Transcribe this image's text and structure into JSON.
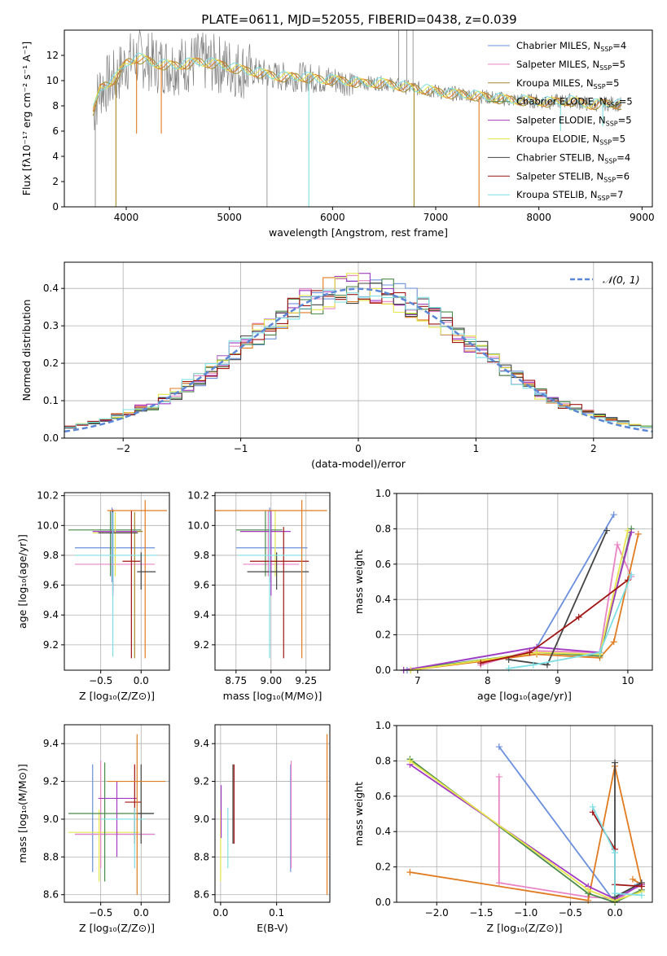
{
  "figure": {
    "title": "PLATE=0611, MJD=52055, FIBERID=0438, z=0.039"
  },
  "colors": {
    "Chabrier MILES": "#6a8fdc",
    "Salpeter MILES": "#e884c4",
    "Kroupa MILES": "#a38a2c",
    "Chabrier ELODIE": "#4a8a4a",
    "Salpeter ELODIE": "#a23bc2",
    "Kroupa ELODIE": "#e6e64c",
    "Chabrier STELIB": "#444444",
    "Salpeter STELIB": "#a01414",
    "Kroupa STELIB": "#7ddfe3",
    "orange": "#e07b20",
    "data": "#808080"
  },
  "chart_data": [
    {
      "id": "spectrum",
      "type": "line",
      "title": "PLATE=0611, MJD=52055, FIBERID=0438, z=0.039",
      "xlabel": "wavelength [Angstrom, rest frame]",
      "ylabel": "Flux [fλ10⁻¹⁷ erg cm⁻² s⁻¹ A⁻¹]",
      "xlim": [
        3400,
        9100
      ],
      "ylim": [
        0,
        14
      ],
      "xticks": [
        "4000",
        "5000",
        "6000",
        "7000",
        "8000",
        "9000"
      ],
      "yticks": [
        "0",
        "2",
        "4",
        "6",
        "8",
        "10",
        "12"
      ],
      "legend_position": "top-right",
      "legend": [
        {
          "label": "Chabrier MILES, N",
          "sub": "SSP",
          "post": "=4"
        },
        {
          "label": "Salpeter MILES, N",
          "sub": "SSP",
          "post": "=5"
        },
        {
          "label": "Kroupa MILES, N",
          "sub": "SSP",
          "post": "=5"
        },
        {
          "label": "Chabrier ELODIE, N",
          "sub": "SSP",
          "post": "=5"
        },
        {
          "label": "Salpeter ELODIE, N",
          "sub": "SSP",
          "post": "=5"
        },
        {
          "label": "Kroupa ELODIE, N",
          "sub": "SSP",
          "post": "=5"
        },
        {
          "label": "Chabrier STELIB, N",
          "sub": "SSP",
          "post": "=4"
        },
        {
          "label": "Salpeter STELIB, N",
          "sub": "SSP",
          "post": "=6"
        },
        {
          "label": "Kroupa STELIB, N",
          "sub": "SSP",
          "post": "=7"
        }
      ],
      "model_curve": {
        "x": [
          3680,
          3750,
          3900,
          4000,
          4100,
          4200,
          4300,
          4500,
          4700,
          4900,
          5100,
          5300,
          5500,
          5700,
          5900,
          6100,
          6300,
          6500,
          6700,
          6900,
          7100,
          7300,
          7500,
          7700,
          7900,
          8100,
          8300,
          8500,
          8700,
          8800
        ],
        "y": [
          7.6,
          9.4,
          10.2,
          11.4,
          11.8,
          11.6,
          11.3,
          11.2,
          11.5,
          11.3,
          10.9,
          10.6,
          10.3,
          10.3,
          10.1,
          10.0,
          9.8,
          9.8,
          9.5,
          9.3,
          9.0,
          8.9,
          8.7,
          8.5,
          8.4,
          8.3,
          8.4,
          8.1,
          8.2,
          8.1
        ]
      }
    },
    {
      "id": "residuals",
      "type": "histogram",
      "xlabel": "(data-model)/error",
      "ylabel": "Normed distribution",
      "xlim": [
        -2.5,
        2.5
      ],
      "ylim": [
        0,
        0.47
      ],
      "xticks": [
        "−2",
        "−1",
        "0",
        "1",
        "2"
      ],
      "yticks": [
        "0.0",
        "0.1",
        "0.2",
        "0.3",
        "0.4"
      ],
      "legend_label": "𝒩(0, 1)",
      "reference": "gaussian N(0,1)"
    },
    {
      "id": "age-vs-z",
      "type": "errorbar",
      "xlabel": "Z [log₁₀(Z/Z⊙)]",
      "ylabel": "age  [log₁₀(age/yr)]",
      "xlim": [
        -0.95,
        0.35
      ],
      "ylim": [
        9.03,
        10.22
      ],
      "xticks": [
        "−0.5",
        "0.0"
      ],
      "yticks": [
        "9.2",
        "9.4",
        "9.6",
        "9.8",
        "10.0",
        "10.2"
      ],
      "points": [
        {
          "model": "Chabrier MILES",
          "x": -0.36,
          "y": 9.85,
          "xe": [
            -0.82,
            0.17
          ],
          "ye": [
            9.62,
            10.12
          ]
        },
        {
          "model": "Salpeter MILES",
          "x": -0.35,
          "y": 9.74,
          "xe": [
            -0.82,
            0.17
          ],
          "ye": [
            9.52,
            10.11
          ]
        },
        {
          "model": "Kroupa MILES",
          "x": -0.08,
          "y": 9.96,
          "xe": [
            -0.54,
            0.02
          ],
          "ye": [
            9.11,
            10.09
          ]
        },
        {
          "model": "Chabrier ELODIE",
          "x": -0.38,
          "y": 9.97,
          "xe": [
            -0.9,
            0.0
          ],
          "ye": [
            9.66,
            10.1
          ]
        },
        {
          "model": "Salpeter ELODIE",
          "x": -0.35,
          "y": 9.96,
          "xe": [
            -0.6,
            -0.05
          ],
          "ye": [
            9.53,
            10.1
          ]
        },
        {
          "model": "Kroupa ELODIE",
          "x": -0.32,
          "y": 9.95,
          "xe": [
            -0.6,
            -0.04
          ],
          "ye": [
            9.66,
            10.09
          ]
        },
        {
          "model": "Chabrier STELIB",
          "x": -0.35,
          "y": 9.95,
          "xe": [
            -0.53,
            -0.04
          ],
          "ye": [
            9.56,
            10.1
          ]
        },
        {
          "model": "Salpeter STELIB",
          "x": -0.12,
          "y": 9.76,
          "xe": [
            -0.23,
            -0.01
          ],
          "ye": [
            9.11,
            10.1
          ]
        },
        {
          "model": "Kroupa STELIB",
          "x": -0.35,
          "y": 9.8,
          "xe": [
            -0.82,
            0.2
          ],
          "ye": [
            9.12,
            10.09
          ]
        },
        {
          "model": "orange",
          "x": 0.05,
          "y": 10.1,
          "xe": [
            -0.42,
            0.32
          ],
          "ye": [
            9.11,
            10.17
          ]
        },
        {
          "model": "Chabrier STELIB",
          "x": 0.0,
          "y": 9.69,
          "xe": [
            -0.05,
            0.18
          ],
          "ye": [
            9.57,
            9.82
          ]
        }
      ]
    },
    {
      "id": "age-vs-mass",
      "type": "errorbar",
      "xlabel": "mass [log₁₀(M/M⊙)]",
      "ylabel": "",
      "xlim": [
        8.6,
        9.42
      ],
      "ylim": [
        9.03,
        10.22
      ],
      "xticks": [
        "8.75",
        "9.00",
        "9.25"
      ],
      "yticks": [
        "9.2",
        "9.4",
        "9.6",
        "9.8",
        "10.0",
        "10.2"
      ],
      "points": [
        {
          "model": "Chabrier MILES",
          "x": 8.99,
          "y": 9.85,
          "xe": [
            8.75,
            9.26
          ],
          "ye": [
            9.62,
            10.12
          ]
        },
        {
          "model": "Salpeter MILES",
          "x": 8.98,
          "y": 9.74,
          "xe": [
            8.8,
            9.2
          ],
          "ye": [
            9.66,
            10.1
          ]
        },
        {
          "model": "Kroupa ELODIE",
          "x": 9.03,
          "y": 9.96,
          "xe": [
            8.78,
            9.11
          ],
          "ye": [
            9.66,
            10.1
          ]
        },
        {
          "model": "Chabrier ELODIE",
          "x": 8.96,
          "y": 9.97,
          "xe": [
            8.75,
            9.08
          ],
          "ye": [
            9.66,
            10.1
          ]
        },
        {
          "model": "Salpeter ELODIE",
          "x": 9.0,
          "y": 9.96,
          "xe": [
            8.78,
            9.14
          ],
          "ye": [
            9.53,
            10.1
          ]
        },
        {
          "model": "Chabrier STELIB",
          "x": 9.04,
          "y": 9.69,
          "xe": [
            8.83,
            9.27
          ],
          "ye": [
            9.57,
            9.82
          ]
        },
        {
          "model": "Salpeter STELIB",
          "x": 9.09,
          "y": 9.76,
          "xe": [
            8.85,
            9.27
          ],
          "ye": [
            9.11,
            9.99
          ]
        },
        {
          "model": "Kroupa STELIB",
          "x": 8.99,
          "y": 9.8,
          "xe": [
            8.76,
            9.24
          ],
          "ye": [
            9.11,
            10.09
          ]
        },
        {
          "model": "orange",
          "x": 9.22,
          "y": 10.1,
          "xe": [
            8.6,
            9.4
          ],
          "ye": [
            9.11,
            10.17
          ]
        }
      ]
    },
    {
      "id": "mass-weight-vs-age",
      "type": "line",
      "xlabel": "age  [log₁₀(age/yr)]",
      "ylabel": "mass weight",
      "xlim": [
        6.7,
        10.35
      ],
      "ylim": [
        0,
        1.0
      ],
      "xticks": [
        "7",
        "8",
        "9",
        "10"
      ],
      "yticks": [
        "0.0",
        "0.2",
        "0.4",
        "0.6",
        "0.8",
        "1.0"
      ],
      "series": [
        {
          "model": "Chabrier MILES",
          "x": [
            6.85,
            8.7,
            9.8
          ],
          "y": [
            0.0,
            0.13,
            0.88
          ]
        },
        {
          "model": "Salpeter MILES",
          "x": [
            7.9,
            8.6,
            9.6,
            9.85,
            10.05
          ],
          "y": [
            0.03,
            0.11,
            0.1,
            0.71,
            0.53
          ]
        },
        {
          "model": "orange",
          "x": [
            6.9,
            8.7,
            9.6,
            9.8,
            10.15
          ],
          "y": [
            0.0,
            0.09,
            0.07,
            0.16,
            0.77
          ]
        },
        {
          "model": "Chabrier ELODIE",
          "x": [
            6.8,
            8.7,
            9.6,
            10.05
          ],
          "y": [
            0.0,
            0.1,
            0.08,
            0.8
          ]
        },
        {
          "model": "Salpeter ELODIE",
          "x": [
            6.8,
            8.7,
            9.6,
            10.05
          ],
          "y": [
            0.0,
            0.13,
            0.1,
            0.78
          ]
        },
        {
          "model": "Kroupa ELODIE",
          "x": [
            6.9,
            8.7,
            9.6,
            10.0
          ],
          "y": [
            0.0,
            0.1,
            0.09,
            0.79
          ]
        },
        {
          "model": "Chabrier STELIB",
          "x": [
            8.3,
            8.85,
            9.7
          ],
          "y": [
            0.06,
            0.03,
            0.79
          ]
        },
        {
          "model": "Salpeter STELIB",
          "x": [
            7.9,
            8.6,
            9.3,
            10.0
          ],
          "y": [
            0.04,
            0.1,
            0.3,
            0.51
          ]
        },
        {
          "model": "Kroupa STELIB",
          "x": [
            8.3,
            8.65,
            9.6,
            10.05
          ],
          "y": [
            0.01,
            0.03,
            0.1,
            0.54
          ]
        }
      ]
    },
    {
      "id": "mass-vs-z",
      "type": "errorbar",
      "xlabel": "Z [log₁₀(Z/Z⊙)]",
      "ylabel": "mass [log₁₀(M/M⊙)]",
      "xlim": [
        -0.95,
        0.35
      ],
      "ylim": [
        8.56,
        9.5
      ],
      "xticks": [
        "−0.5",
        "0.0"
      ],
      "yticks": [
        "8.6",
        "8.8",
        "9.0",
        "9.2",
        "9.4"
      ],
      "points": [
        {
          "model": "Chabrier MILES",
          "x": -0.6,
          "y": 8.92,
          "xe": [
            -0.82,
            0.17
          ],
          "ye": [
            8.72,
            9.29
          ]
        },
        {
          "model": "Salpeter MILES",
          "x": -0.5,
          "y": 8.92,
          "xe": [
            -0.82,
            0.17
          ],
          "ye": [
            8.74,
            9.31
          ]
        },
        {
          "model": "Kroupa ELODIE",
          "x": -0.52,
          "y": 8.93,
          "xe": [
            -0.9,
            -0.02
          ],
          "ye": [
            8.67,
            9.05
          ]
        },
        {
          "model": "Chabrier ELODIE",
          "x": -0.45,
          "y": 9.03,
          "xe": [
            -0.9,
            0.15
          ],
          "ye": [
            8.67,
            9.3
          ]
        },
        {
          "model": "Salpeter ELODIE",
          "x": -0.3,
          "y": 9.11,
          "xe": [
            -0.53,
            -0.05
          ],
          "ye": [
            8.8,
            9.2
          ]
        },
        {
          "model": "Chabrier STELIB",
          "x": 0.0,
          "y": 9.03,
          "xe": [
            -0.05,
            0.16
          ],
          "ye": [
            8.87,
            9.29
          ]
        },
        {
          "model": "Salpeter STELIB",
          "x": -0.08,
          "y": 9.09,
          "xe": [
            -0.2,
            0.0
          ],
          "ye": [
            8.87,
            9.29
          ]
        },
        {
          "model": "Kroupa STELIB",
          "x": -0.08,
          "y": 9.0,
          "xe": [
            -0.5,
            0.05
          ],
          "ye": [
            8.74,
            9.06
          ]
        },
        {
          "model": "orange",
          "x": -0.05,
          "y": 9.2,
          "xe": [
            -0.42,
            0.3
          ],
          "ye": [
            8.6,
            9.45
          ]
        }
      ]
    },
    {
      "id": "mass-vs-ebv",
      "type": "errorbar",
      "xlabel": "E(B-V)",
      "ylabel": "",
      "xlim": [
        -0.01,
        0.195
      ],
      "ylim": [
        8.56,
        9.5
      ],
      "xticks": [
        "0.0",
        "0.1"
      ],
      "yticks": [
        "8.6",
        "8.8",
        "9.0",
        "9.2",
        "9.4"
      ],
      "points": [
        {
          "model": "Chabrier MILES",
          "x": 0.125,
          "y": 9.0,
          "ye": [
            8.72,
            9.29
          ]
        },
        {
          "model": "Salpeter MILES",
          "x": 0.126,
          "y": 9.1,
          "ye": [
            8.74,
            9.31
          ]
        },
        {
          "model": "Kroupa ELODIE",
          "x": 0.0,
          "y": 9.0,
          "ye": [
            8.67,
            9.05
          ]
        },
        {
          "model": "Salpeter ELODIE",
          "x": 0.001,
          "y": 9.05,
          "ye": [
            8.9,
            9.18
          ]
        },
        {
          "model": "Chabrier STELIB",
          "x": 0.022,
          "y": 9.08,
          "ye": [
            8.87,
            9.29
          ]
        },
        {
          "model": "Salpeter STELIB",
          "x": 0.024,
          "y": 9.1,
          "ye": [
            8.87,
            9.29
          ]
        },
        {
          "model": "Kroupa STELIB",
          "x": 0.013,
          "y": 8.98,
          "ye": [
            8.74,
            9.06
          ]
        },
        {
          "model": "orange",
          "x": 0.19,
          "y": 9.1,
          "ye": [
            8.6,
            9.45
          ]
        }
      ]
    },
    {
      "id": "mass-weight-vs-z",
      "type": "line",
      "xlabel": "Z [log₁₀(Z/Z⊙)]",
      "ylabel": "mass weight",
      "xlim": [
        -2.45,
        0.42
      ],
      "ylim": [
        0,
        1.0
      ],
      "xticks": [
        "−2.0",
        "−1.5",
        "−1.0",
        "−0.5",
        "0.0"
      ],
      "yticks": [
        "0.0",
        "0.2",
        "0.4",
        "0.6",
        "0.8",
        "1.0"
      ],
      "series": [
        {
          "model": "Chabrier MILES",
          "x": [
            -1.3,
            0.0,
            0.25
          ],
          "y": [
            0.88,
            0.0,
            0.1
          ]
        },
        {
          "model": "Salpeter MILES",
          "x": [
            -1.3,
            -1.3,
            -0.3,
            0.05,
            0.3
          ],
          "y": [
            0.71,
            0.11,
            0.03,
            0.02,
            0.11
          ]
        },
        {
          "model": "orange",
          "x": [
            -2.3,
            -0.3,
            0.0,
            0.3,
            0.2
          ],
          "y": [
            0.17,
            0.01,
            0.77,
            0.1,
            0.13
          ]
        },
        {
          "model": "Chabrier ELODIE",
          "x": [
            -2.3,
            -0.3,
            0.0,
            0.3
          ],
          "y": [
            0.81,
            0.05,
            0.0,
            0.07
          ]
        },
        {
          "model": "Salpeter ELODIE",
          "x": [
            -2.3,
            -0.3,
            0.0,
            0.3
          ],
          "y": [
            0.78,
            0.09,
            0.02,
            0.1
          ]
        },
        {
          "model": "Kroupa ELODIE",
          "x": [
            -2.3,
            -0.3,
            0.0,
            0.3
          ],
          "y": [
            0.8,
            0.07,
            0.01,
            0.06
          ]
        },
        {
          "model": "Chabrier STELIB",
          "x": [
            0.0,
            0.0,
            0.3
          ],
          "y": [
            0.79,
            0.03,
            0.11
          ]
        },
        {
          "model": "Salpeter STELIB",
          "x": [
            -0.25,
            0.0,
            0.0,
            0.3
          ],
          "y": [
            0.51,
            0.3,
            0.1,
            0.09
          ]
        },
        {
          "model": "Kroupa STELIB",
          "x": [
            -0.25,
            0.0,
            0.0,
            0.3
          ],
          "y": [
            0.54,
            0.28,
            0.05,
            0.04
          ]
        }
      ]
    }
  ]
}
